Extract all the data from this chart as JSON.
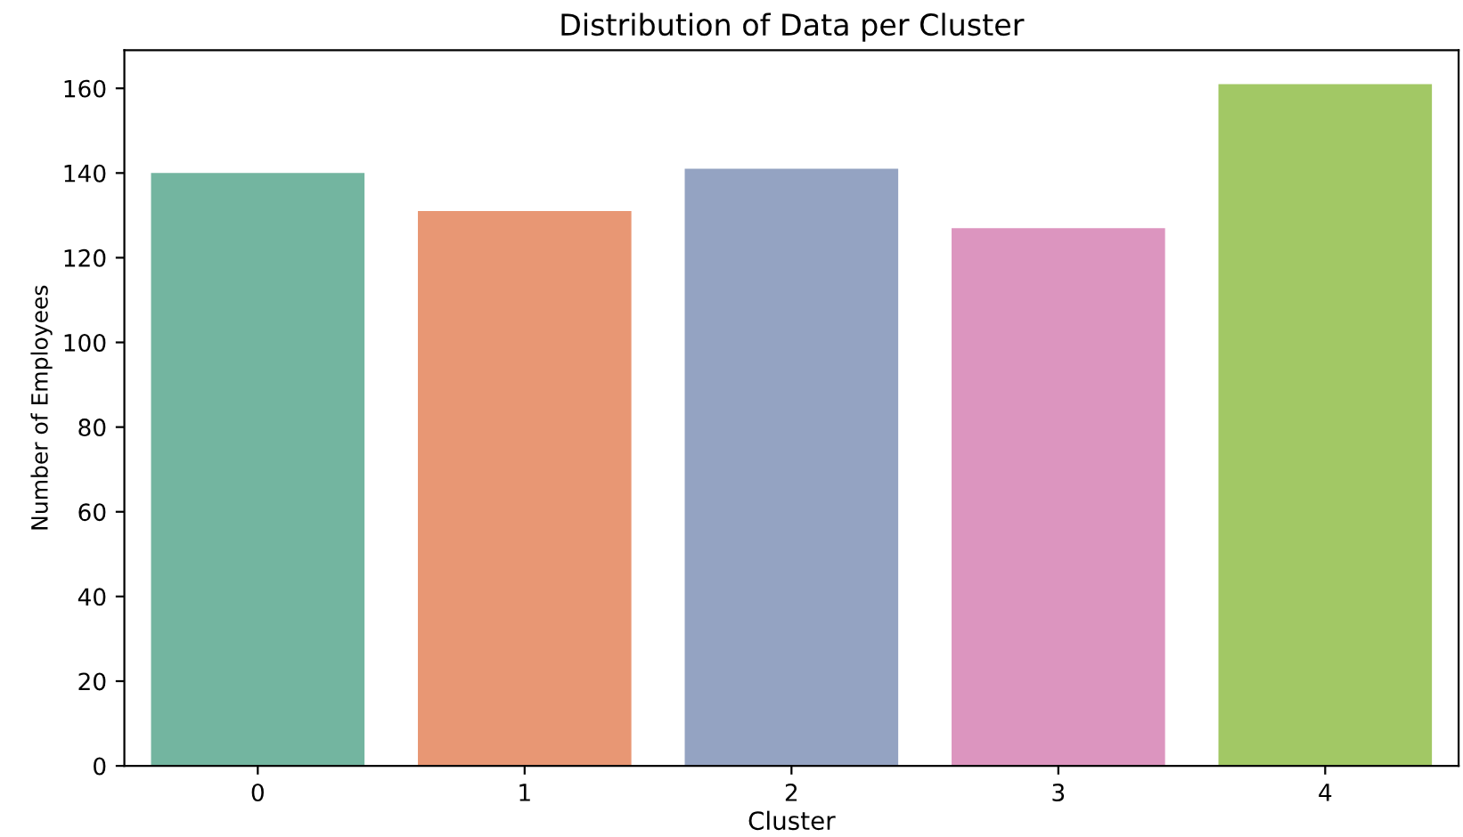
{
  "chart_data": {
    "type": "bar",
    "title": "Distribution of Data per Cluster",
    "xlabel": "Cluster",
    "ylabel": "Number of Employees",
    "categories": [
      "0",
      "1",
      "2",
      "3",
      "4"
    ],
    "values": [
      140,
      131,
      141,
      127,
      161
    ],
    "colors": [
      "#73b5a0",
      "#e89774",
      "#94a3c2",
      "#dc95bf",
      "#a2c865"
    ],
    "ylim": [
      0,
      169
    ],
    "yticks": [
      0,
      20,
      40,
      60,
      80,
      100,
      120,
      140,
      160
    ],
    "grid": false
  }
}
